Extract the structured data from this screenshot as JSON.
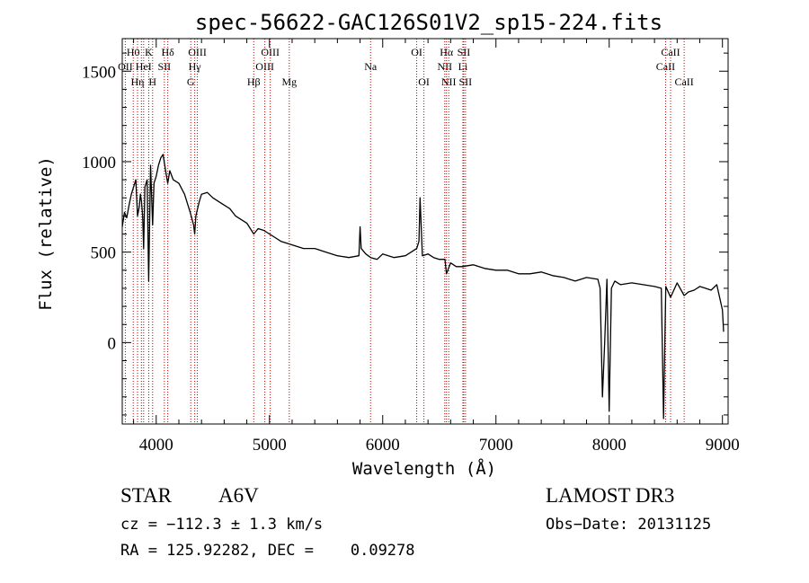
{
  "chart_data": {
    "type": "line",
    "title": "spec-56622-GAC126S01V2_sp15-224.fits",
    "xlabel": "Wavelength (Å)",
    "ylabel": "Flux (relative)",
    "xlim": [
      3700,
      9050
    ],
    "ylim": [
      -450,
      1680
    ],
    "x_ticks": [
      4000,
      5000,
      6000,
      7000,
      8000,
      9000
    ],
    "x_tick_labels": [
      "4000",
      "5000",
      "6000",
      "7000",
      "8000",
      "9000"
    ],
    "y_ticks": [
      0,
      500,
      1000,
      1500
    ],
    "y_tick_labels": [
      "0",
      "500",
      "1000",
      "1500"
    ],
    "grid": false,
    "series": [
      {
        "color": "#000000",
        "x": [
          3700,
          3720,
          3740,
          3760,
          3780,
          3800,
          3820,
          3835,
          3850,
          3860,
          3870,
          3880,
          3889,
          3900,
          3920,
          3933,
          3950,
          3968,
          3980,
          4000,
          4020,
          4040,
          4060,
          4080,
          4102,
          4120,
          4150,
          4200,
          4250,
          4300,
          4330,
          4340,
          4350,
          4380,
          4400,
          4450,
          4500,
          4550,
          4600,
          4650,
          4700,
          4750,
          4800,
          4861,
          4900,
          4950,
          5000,
          5050,
          5100,
          5200,
          5300,
          5400,
          5500,
          5600,
          5700,
          5790,
          5800,
          5810,
          5850,
          5893,
          5950,
          6000,
          6100,
          6200,
          6250,
          6300,
          6320,
          6330,
          6350,
          6400,
          6450,
          6500,
          6550,
          6563,
          6600,
          6650,
          6700,
          6800,
          6900,
          7000,
          7100,
          7200,
          7300,
          7400,
          7500,
          7600,
          7700,
          7800,
          7900,
          7920,
          7940,
          7960,
          7980,
          8000,
          8020,
          8050,
          8100,
          8200,
          8300,
          8400,
          8460,
          8480,
          8500,
          8542,
          8600,
          8662,
          8700,
          8750,
          8800,
          8850,
          8900,
          8950,
          9000,
          9010
        ],
        "y": [
          640,
          720,
          690,
          760,
          820,
          860,
          900,
          700,
          750,
          820,
          780,
          700,
          520,
          860,
          900,
          340,
          980,
          650,
          880,
          920,
          980,
          1020,
          1040,
          960,
          880,
          950,
          900,
          880,
          820,
          720,
          650,
          600,
          700,
          780,
          820,
          830,
          800,
          780,
          760,
          740,
          700,
          680,
          660,
          600,
          630,
          620,
          600,
          580,
          560,
          540,
          520,
          520,
          500,
          480,
          470,
          480,
          640,
          520,
          490,
          470,
          460,
          490,
          470,
          480,
          500,
          520,
          560,
          800,
          480,
          490,
          470,
          460,
          460,
          380,
          440,
          420,
          420,
          430,
          410,
          400,
          400,
          380,
          380,
          390,
          370,
          360,
          340,
          360,
          350,
          300,
          -300,
          0,
          350,
          -380,
          300,
          340,
          320,
          330,
          320,
          310,
          300,
          -420,
          310,
          250,
          330,
          260,
          280,
          290,
          310,
          300,
          290,
          320,
          180,
          60
        ]
      }
    ],
    "line_markers": [
      {
        "x": 3727,
        "top": "",
        "mid": "OII",
        "bot": ""
      },
      {
        "x": 3797,
        "top": "H0",
        "mid": "",
        "bot": ""
      },
      {
        "x": 3835,
        "top": "",
        "mid": "",
        "bot": "Hη"
      },
      {
        "x": 3869,
        "top": "",
        "mid": "",
        "bot": ""
      },
      {
        "x": 3889,
        "top": "",
        "mid": "HeI",
        "bot": ""
      },
      {
        "x": 3934,
        "top": "K",
        "mid": "",
        "bot": ""
      },
      {
        "x": 3968,
        "top": "",
        "mid": "",
        "bot": "H"
      },
      {
        "x": 4072,
        "top": "",
        "mid": "SII",
        "bot": ""
      },
      {
        "x": 4102,
        "top": "Hδ",
        "mid": "",
        "bot": ""
      },
      {
        "x": 4305,
        "top": "",
        "mid": "",
        "bot": "G"
      },
      {
        "x": 4340,
        "top": "",
        "mid": "Hγ",
        "bot": ""
      },
      {
        "x": 4363,
        "top": "OIII",
        "mid": "",
        "bot": ""
      },
      {
        "x": 4861,
        "top": "",
        "mid": "",
        "bot": "Hβ"
      },
      {
        "x": 4959,
        "top": "",
        "mid": "OIII",
        "bot": ""
      },
      {
        "x": 5007,
        "top": "OIII",
        "mid": "",
        "bot": ""
      },
      {
        "x": 5175,
        "top": "",
        "mid": "",
        "bot": "Mg"
      },
      {
        "x": 5893,
        "top": "",
        "mid": "Na",
        "bot": ""
      },
      {
        "x": 6300,
        "top": "OI",
        "mid": "",
        "bot": ""
      },
      {
        "x": 6364,
        "top": "",
        "mid": "",
        "bot": "OI"
      },
      {
        "x": 6548,
        "top": "",
        "mid": "NII",
        "bot": ""
      },
      {
        "x": 6563,
        "top": "Hα",
        "mid": "",
        "bot": ""
      },
      {
        "x": 6583,
        "top": "",
        "mid": "",
        "bot": "NII"
      },
      {
        "x": 6708,
        "top": "",
        "mid": "Li",
        "bot": ""
      },
      {
        "x": 6716,
        "top": "SII",
        "mid": "",
        "bot": ""
      },
      {
        "x": 6731,
        "top": "",
        "mid": "",
        "bot": "SII"
      },
      {
        "x": 8498,
        "top": "",
        "mid": "CaII",
        "bot": ""
      },
      {
        "x": 8542,
        "top": "CaII",
        "mid": "",
        "bot": ""
      },
      {
        "x": 8662,
        "top": "",
        "mid": "",
        "bot": "CaII"
      }
    ]
  },
  "info": {
    "object_class": "STAR",
    "subclass": "A6V",
    "survey": "LAMOST DR3",
    "redshift_text": "cz = −112.3 ± 1.3 km/s",
    "obs_date_text": "Obs−Date: 20131125",
    "coords_text": "RA = 125.92282, DEC =    0.09278"
  }
}
